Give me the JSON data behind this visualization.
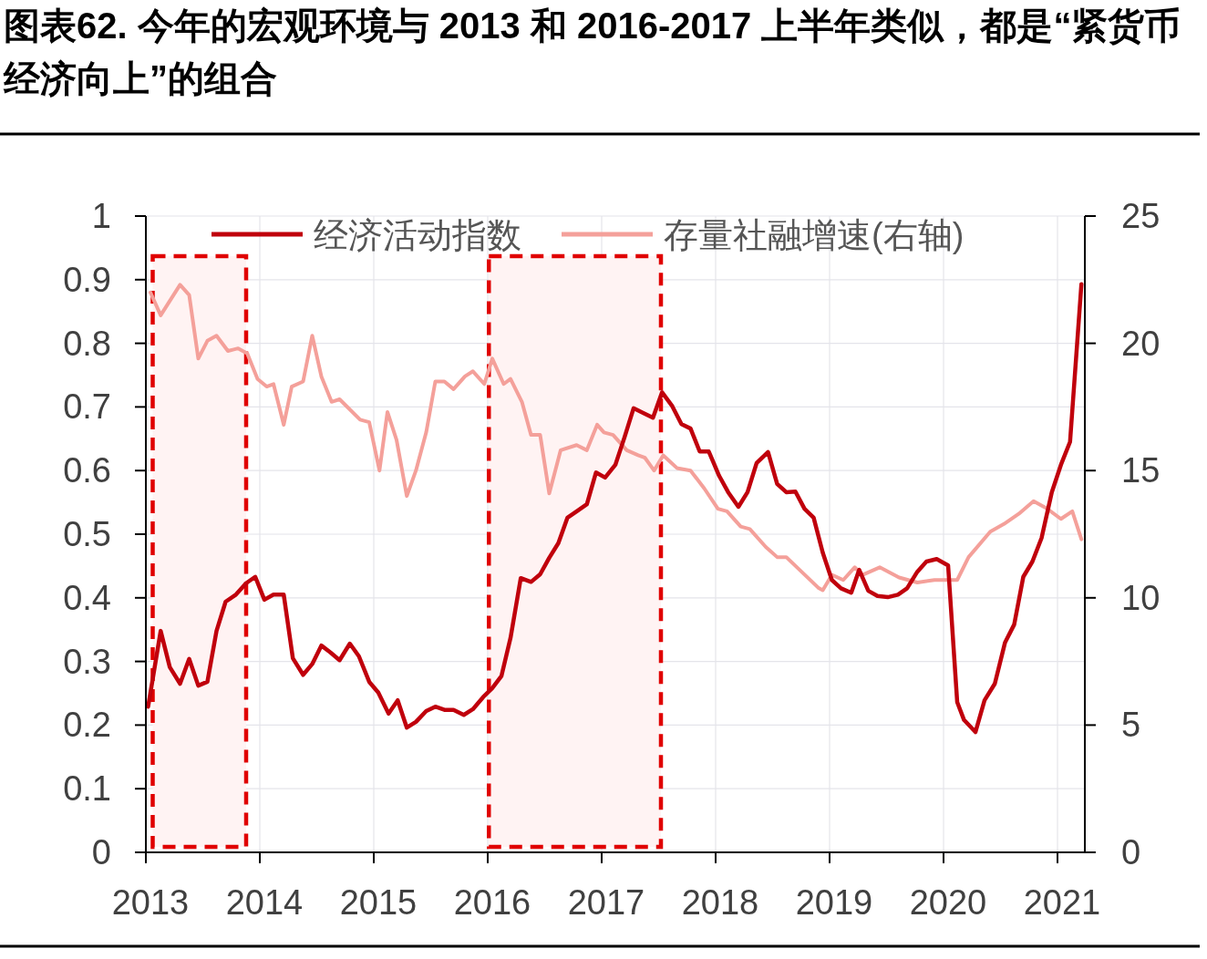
{
  "chart_data": {
    "type": "line",
    "title": "图表62. 今年的宏观环境与 2013 和 2016-2017 上半年类似，都是“紧货币经济向上”的组合",
    "xlim": [
      2013,
      2021.24
    ],
    "xticks": [
      2013,
      2014,
      2015,
      2016,
      2017,
      2018,
      2019,
      2020,
      2021
    ],
    "ylim": [
      0,
      1
    ],
    "yticks": [
      0,
      0.1,
      0.2,
      0.3,
      0.4,
      0.5,
      0.6,
      0.7,
      0.8,
      0.9,
      1
    ],
    "y2lim": [
      0,
      25
    ],
    "y2ticks": [
      0,
      5,
      10,
      15,
      20,
      25
    ],
    "grid": true,
    "legend": "top",
    "bands": [
      {
        "axis": "x",
        "from": 2013.06,
        "to": 2013.88,
        "color": "#e00000"
      },
      {
        "axis": "x",
        "from": 2016.01,
        "to": 2017.52,
        "color": "#e00000"
      }
    ],
    "series": [
      {
        "name": "经济活动指数",
        "color": "#c0000c",
        "x": [
          2013.02,
          2013.13,
          2013.21,
          2013.3,
          2013.38,
          2013.46,
          2013.54,
          2013.62,
          2013.7,
          2013.79,
          2013.88,
          2013.96,
          2014.04,
          2014.12,
          2014.21,
          2014.29,
          2014.38,
          2014.46,
          2014.54,
          2014.62,
          2014.7,
          2014.79,
          2014.87,
          2014.96,
          2015.04,
          2015.13,
          2015.21,
          2015.29,
          2015.37,
          2015.46,
          2015.54,
          2015.62,
          2015.7,
          2015.79,
          2015.87,
          2015.96,
          2016.04,
          2016.12,
          2016.2,
          2016.29,
          2016.38,
          2016.46,
          2016.54,
          2016.62,
          2016.7,
          2016.79,
          2016.87,
          2016.95,
          2017.03,
          2017.12,
          2017.2,
          2017.28,
          2017.36,
          2017.45,
          2017.53,
          2017.62,
          2017.7,
          2017.78,
          2017.86,
          2017.94,
          2018.03,
          2018.11,
          2018.2,
          2018.28,
          2018.36,
          2018.46,
          2018.54,
          2018.62,
          2018.7,
          2018.78,
          2018.86,
          2018.94,
          2019.02,
          2019.1,
          2019.19,
          2019.26,
          2019.34,
          2019.42,
          2019.51,
          2019.6,
          2019.68,
          2019.77,
          2019.85,
          2019.94,
          2020.04,
          2020.12,
          2020.18,
          2020.28,
          2020.36,
          2020.45,
          2020.54,
          2020.62,
          2020.7,
          2020.78,
          2020.86,
          2020.95,
          2021.03,
          2021.11,
          2021.21
        ],
        "values": [
          0.229,
          0.348,
          0.291,
          0.265,
          0.304,
          0.262,
          0.268,
          0.348,
          0.394,
          0.405,
          0.423,
          0.433,
          0.397,
          0.405,
          0.405,
          0.305,
          0.279,
          0.296,
          0.325,
          0.314,
          0.302,
          0.328,
          0.308,
          0.268,
          0.251,
          0.218,
          0.239,
          0.196,
          0.205,
          0.222,
          0.229,
          0.224,
          0.224,
          0.216,
          0.225,
          0.244,
          0.258,
          0.277,
          0.337,
          0.431,
          0.425,
          0.437,
          0.463,
          0.486,
          0.526,
          0.537,
          0.547,
          0.597,
          0.589,
          0.609,
          0.652,
          0.698,
          0.691,
          0.683,
          0.723,
          0.701,
          0.673,
          0.666,
          0.63,
          0.63,
          0.592,
          0.566,
          0.543,
          0.566,
          0.612,
          0.629,
          0.579,
          0.566,
          0.567,
          0.54,
          0.526,
          0.471,
          0.428,
          0.415,
          0.408,
          0.444,
          0.411,
          0.403,
          0.401,
          0.405,
          0.415,
          0.441,
          0.457,
          0.461,
          0.451,
          0.236,
          0.208,
          0.189,
          0.239,
          0.265,
          0.33,
          0.358,
          0.433,
          0.457,
          0.494,
          0.566,
          0.609,
          0.645,
          0.893
        ]
      },
      {
        "name": "存量社融增速(右轴)",
        "color": "#f4a09a",
        "axis": "y2",
        "x": [
          2013.04,
          2013.13,
          2013.3,
          2013.38,
          2013.46,
          2013.54,
          2013.62,
          2013.72,
          2013.81,
          2013.89,
          2013.98,
          2014.06,
          2014.12,
          2014.21,
          2014.28,
          2014.38,
          2014.46,
          2014.54,
          2014.63,
          2014.7,
          2014.88,
          2014.96,
          2015.05,
          2015.12,
          2015.2,
          2015.29,
          2015.37,
          2015.46,
          2015.54,
          2015.62,
          2015.7,
          2015.8,
          2015.87,
          2015.97,
          2016.04,
          2016.14,
          2016.2,
          2016.3,
          2016.38,
          2016.46,
          2016.54,
          2016.64,
          2016.78,
          2016.87,
          2016.96,
          2017.02,
          2017.1,
          2017.22,
          2017.32,
          2017.38,
          2017.46,
          2017.54,
          2017.66,
          2017.78,
          2017.9,
          2018.02,
          2018.1,
          2018.22,
          2018.3,
          2018.44,
          2018.54,
          2018.62,
          2018.76,
          2018.9,
          2018.94,
          2019.02,
          2019.12,
          2019.22,
          2019.29,
          2019.44,
          2019.61,
          2019.77,
          2019.92,
          2020.12,
          2020.22,
          2020.41,
          2020.53,
          2020.66,
          2020.79,
          2020.91,
          2021.03,
          2021.13,
          2021.21
        ],
        "values": [
          22.0,
          21.1,
          22.3,
          21.9,
          19.4,
          20.1,
          20.3,
          19.7,
          19.8,
          19.6,
          18.6,
          18.3,
          18.4,
          16.8,
          18.3,
          18.5,
          20.3,
          18.7,
          17.7,
          17.8,
          17.0,
          16.9,
          15.0,
          17.3,
          16.2,
          14.0,
          15.0,
          16.5,
          18.5,
          18.5,
          18.2,
          18.7,
          18.9,
          18.4,
          19.4,
          18.4,
          18.6,
          17.7,
          16.4,
          16.4,
          14.1,
          15.8,
          16.0,
          15.8,
          16.8,
          16.5,
          16.4,
          15.8,
          15.6,
          15.5,
          15.0,
          15.6,
          15.1,
          15.0,
          14.3,
          13.5,
          13.4,
          12.8,
          12.7,
          12.0,
          11.6,
          11.6,
          11.0,
          10.4,
          10.3,
          10.9,
          10.7,
          11.2,
          10.9,
          11.2,
          10.8,
          10.6,
          10.7,
          10.7,
          11.6,
          12.6,
          12.9,
          13.3,
          13.8,
          13.5,
          13.1,
          13.4,
          12.3
        ]
      }
    ]
  }
}
